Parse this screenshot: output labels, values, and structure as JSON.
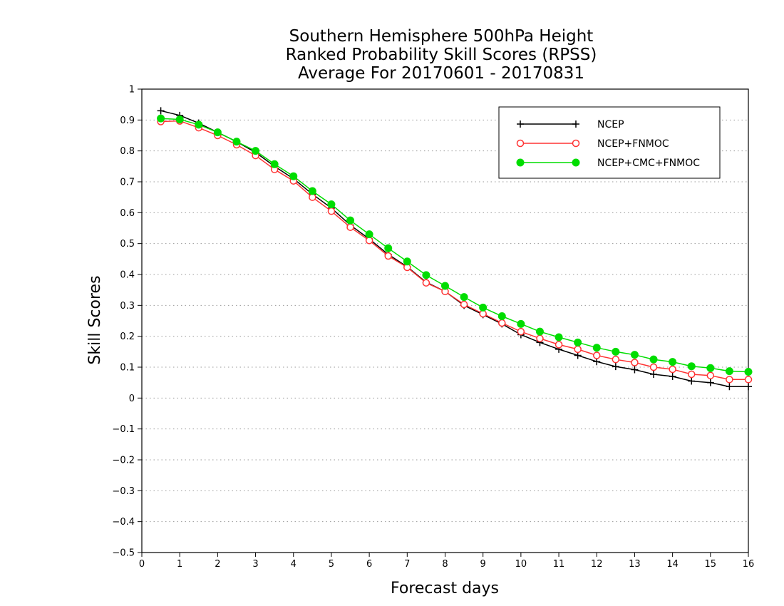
{
  "chart_data": {
    "type": "line",
    "title": [
      "Southern Hemisphere 500hPa Height",
      "Ranked Probability Skill Scores (RPSS)",
      "Average For 20170601 - 20170831"
    ],
    "xlabel": "Forecast days",
    "ylabel": "Skill Scores",
    "xlim": [
      0,
      16
    ],
    "ylim": [
      -0.5,
      1
    ],
    "xticks": [
      0,
      1,
      2,
      3,
      4,
      5,
      6,
      7,
      8,
      9,
      10,
      11,
      12,
      13,
      14,
      15,
      16
    ],
    "yticks": [
      -0.5,
      -0.4,
      -0.3,
      -0.2,
      -0.1,
      0,
      0.1,
      0.2,
      0.3,
      0.4,
      0.5,
      0.6,
      0.7,
      0.8,
      0.9,
      1
    ],
    "ytick_labels": [
      "−0.5",
      "−0.4",
      "−0.3",
      "−0.2",
      "−0.1",
      "0",
      "0.1",
      "0.2",
      "0.3",
      "0.4",
      "0.5",
      "0.6",
      "0.7",
      "0.8",
      "0.9",
      "1"
    ],
    "grid": "horizontal dotted",
    "legend_position": "top-right",
    "x": [
      0.5,
      1,
      1.5,
      2,
      2.5,
      3,
      3.5,
      4,
      4.5,
      5,
      5.5,
      6,
      6.5,
      7,
      7.5,
      8,
      8.5,
      9,
      9.5,
      10,
      10.5,
      11,
      11.5,
      12,
      12.5,
      13,
      13.5,
      14,
      14.5,
      15,
      15.5,
      16
    ],
    "series": [
      {
        "name": "NCEP",
        "color": "#000000",
        "marker": "plus",
        "values": [
          0.93,
          0.915,
          0.89,
          0.86,
          0.83,
          0.795,
          0.75,
          0.71,
          0.66,
          0.615,
          0.56,
          0.515,
          0.465,
          0.425,
          0.375,
          0.345,
          0.3,
          0.27,
          0.24,
          0.205,
          0.18,
          0.158,
          0.138,
          0.118,
          0.102,
          0.092,
          0.077,
          0.07,
          0.055,
          0.05,
          0.037,
          0.037
        ]
      },
      {
        "name": "NCEP+FNMOC",
        "color": "#ff3333",
        "marker": "open-circle",
        "values": [
          0.895,
          0.897,
          0.875,
          0.85,
          0.82,
          0.785,
          0.74,
          0.703,
          0.65,
          0.605,
          0.553,
          0.51,
          0.46,
          0.423,
          0.373,
          0.345,
          0.303,
          0.273,
          0.243,
          0.215,
          0.193,
          0.173,
          0.158,
          0.138,
          0.125,
          0.115,
          0.1,
          0.093,
          0.077,
          0.073,
          0.06,
          0.06
        ]
      },
      {
        "name": "NCEP+CMC+FNMOC",
        "color": "#00dd00",
        "marker": "filled-circle",
        "values": [
          0.905,
          0.902,
          0.885,
          0.86,
          0.83,
          0.8,
          0.757,
          0.718,
          0.67,
          0.627,
          0.575,
          0.53,
          0.485,
          0.442,
          0.398,
          0.363,
          0.327,
          0.293,
          0.265,
          0.24,
          0.215,
          0.197,
          0.18,
          0.163,
          0.15,
          0.14,
          0.125,
          0.117,
          0.103,
          0.097,
          0.087,
          0.085
        ]
      }
    ]
  }
}
